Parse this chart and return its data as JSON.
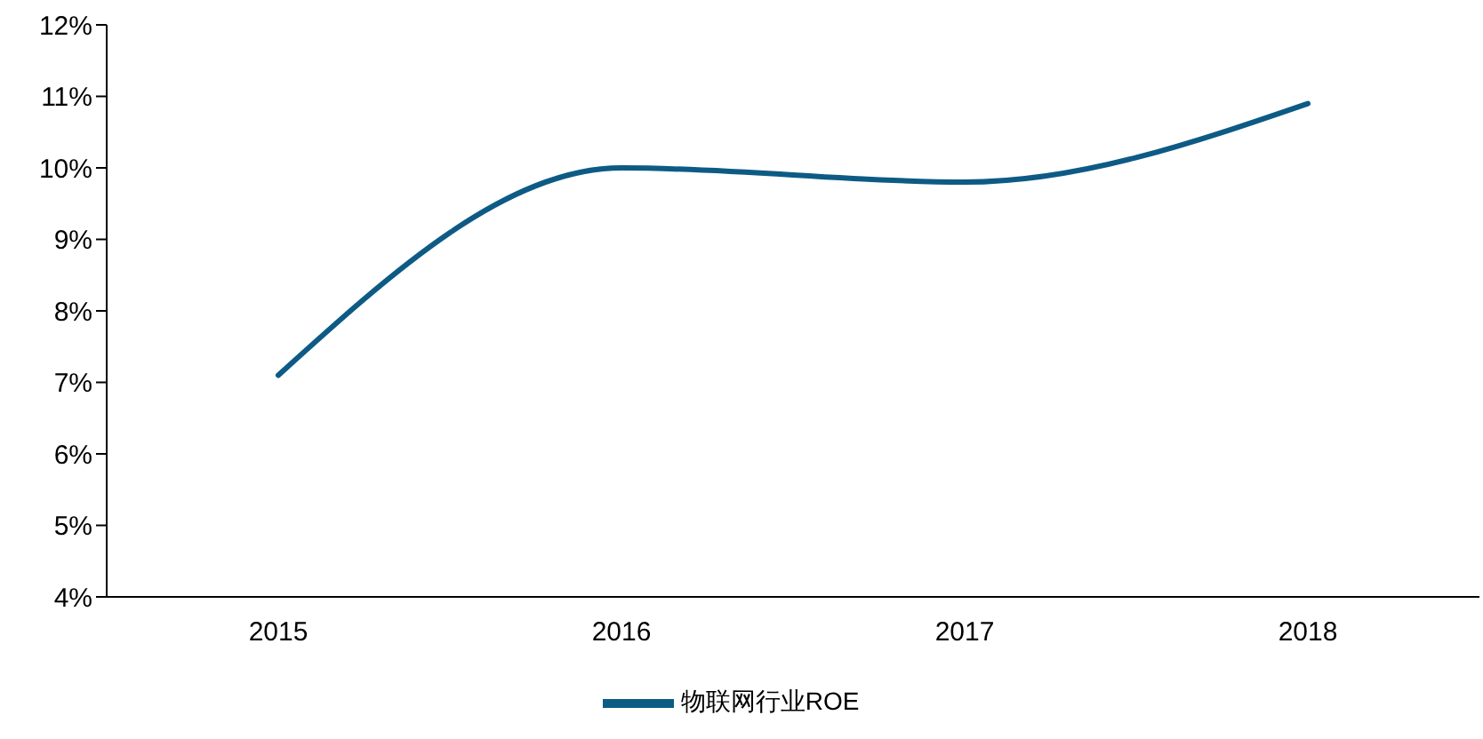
{
  "chart_data": {
    "type": "line",
    "categories": [
      "2015",
      "2016",
      "2017",
      "2018"
    ],
    "series": [
      {
        "name": "物联网行业ROE",
        "color": "#0d5b85",
        "values": [
          7.1,
          10.0,
          9.8,
          10.9
        ]
      }
    ],
    "ylim": [
      4,
      12
    ],
    "yticks": [
      {
        "value": 4,
        "label": "4%"
      },
      {
        "value": 5,
        "label": "5%"
      },
      {
        "value": 6,
        "label": "6%"
      },
      {
        "value": 7,
        "label": "7%"
      },
      {
        "value": 8,
        "label": "8%"
      },
      {
        "value": 9,
        "label": "9%"
      },
      {
        "value": 10,
        "label": "10%"
      },
      {
        "value": 11,
        "label": "11%"
      },
      {
        "value": 12,
        "label": "12%"
      }
    ],
    "grid": false,
    "legend": "bottom",
    "marker": "none",
    "line_style": "solid"
  }
}
